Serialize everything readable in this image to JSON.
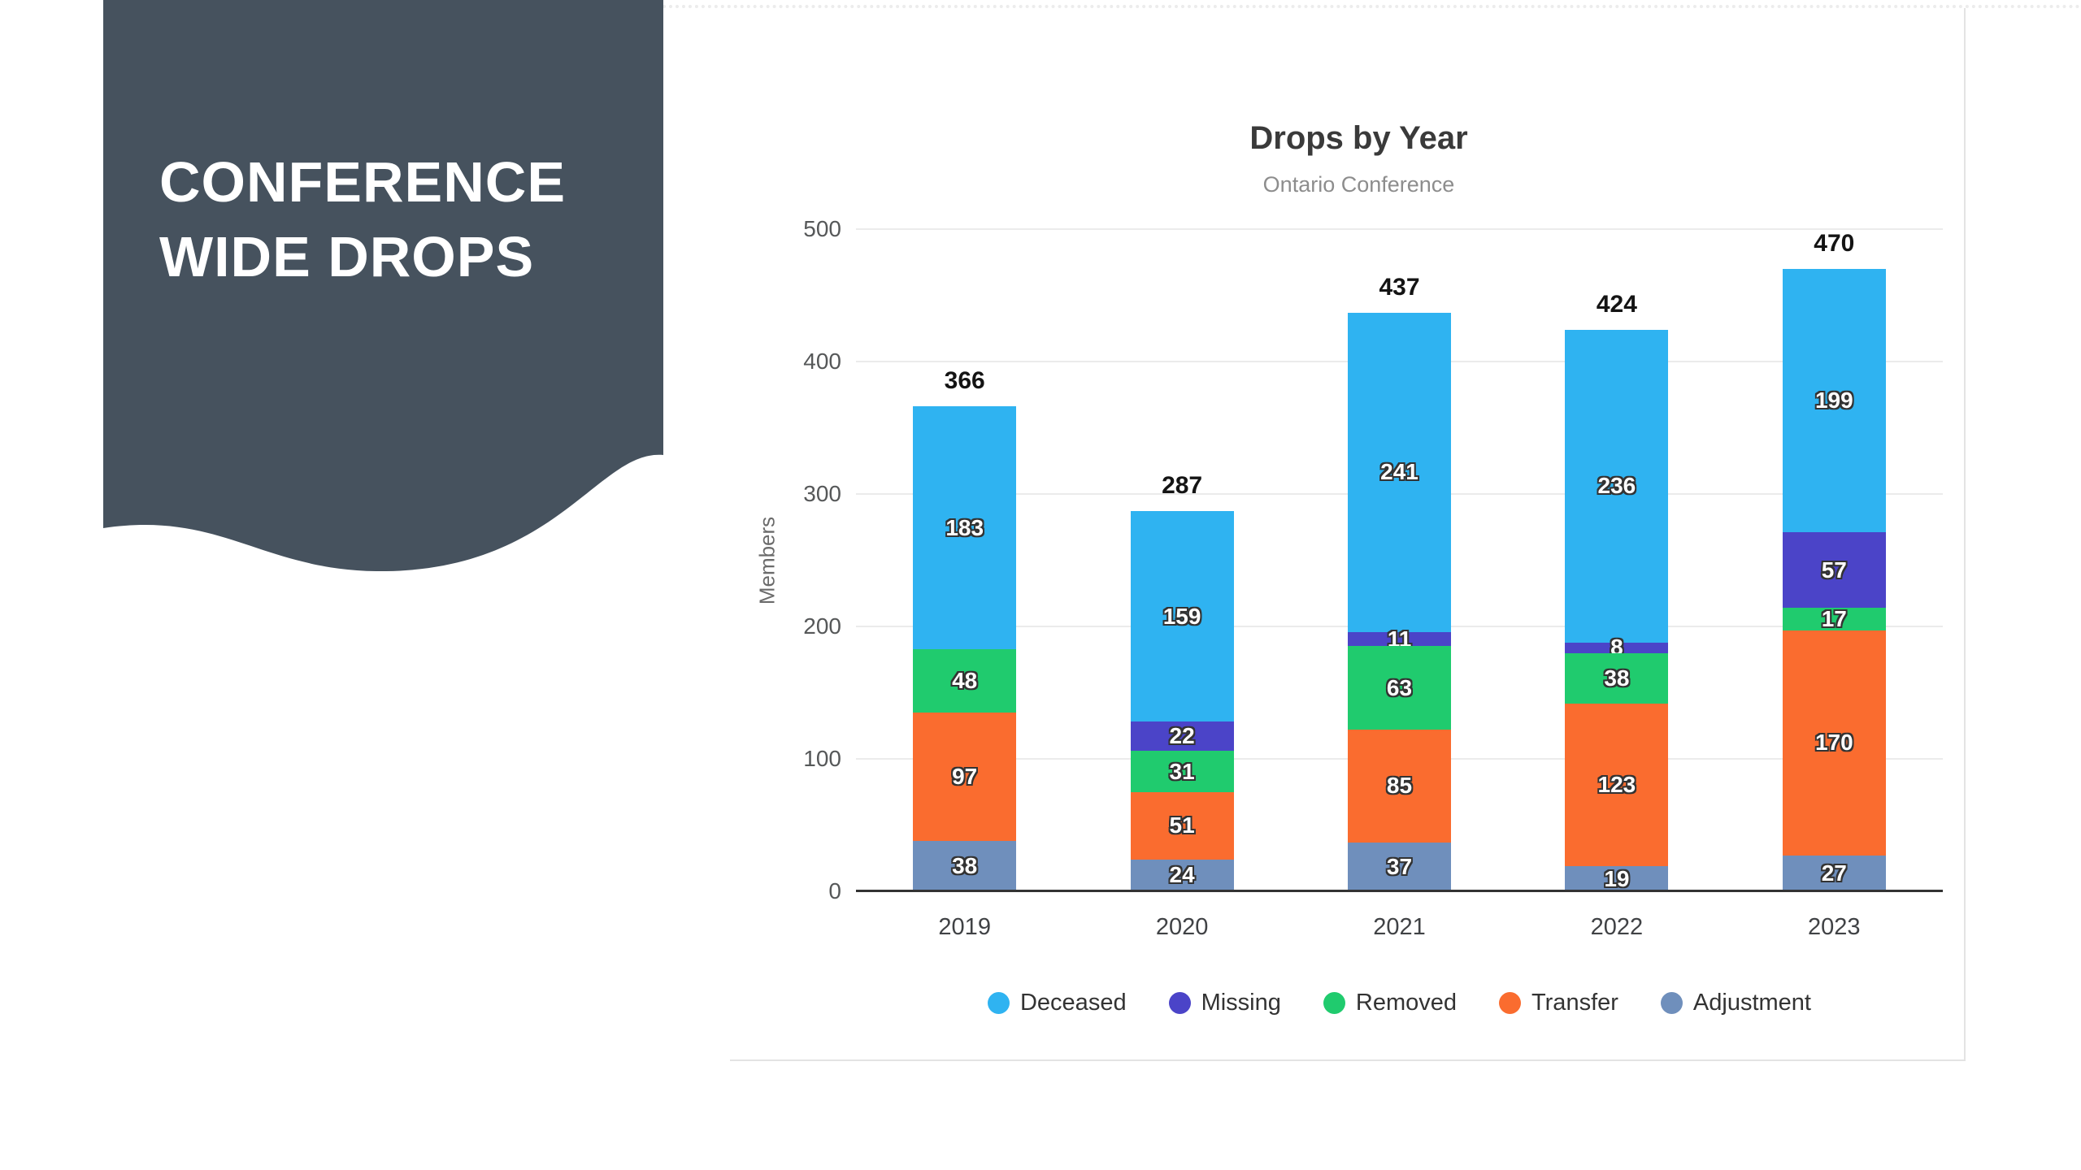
{
  "banner": {
    "line1": "CONFERENCE",
    "line2": "WIDE DROPS",
    "color": "#46525E"
  },
  "chart_data": {
    "type": "bar",
    "stacked": true,
    "title": "Drops by Year",
    "subtitle": "Ontario Conference",
    "xlabel": "",
    "ylabel": "Members",
    "ylim": [
      0,
      500
    ],
    "ytick_step": 100,
    "yticks": [
      "0",
      "100",
      "200",
      "300",
      "400",
      "500"
    ],
    "grid": true,
    "categories": [
      "2019",
      "2020",
      "2021",
      "2022",
      "2023"
    ],
    "totals": [
      366,
      287,
      437,
      424,
      470
    ],
    "series": [
      {
        "name": "Adjustment",
        "color": "#6F8FBC",
        "values": [
          38,
          24,
          37,
          19,
          27
        ]
      },
      {
        "name": "Transfer",
        "color": "#FA6C2F",
        "values": [
          97,
          51,
          85,
          123,
          170
        ]
      },
      {
        "name": "Removed",
        "color": "#20CB6E",
        "values": [
          48,
          31,
          63,
          38,
          17
        ]
      },
      {
        "name": "Missing",
        "color": "#4B44C8",
        "values": [
          0,
          22,
          11,
          8,
          57
        ]
      },
      {
        "name": "Deceased",
        "color": "#2FB3F1",
        "values": [
          183,
          159,
          241,
          236,
          199
        ]
      }
    ],
    "legend": [
      "Deceased",
      "Missing",
      "Removed",
      "Transfer",
      "Adjustment"
    ],
    "legend_position": "bottom"
  }
}
